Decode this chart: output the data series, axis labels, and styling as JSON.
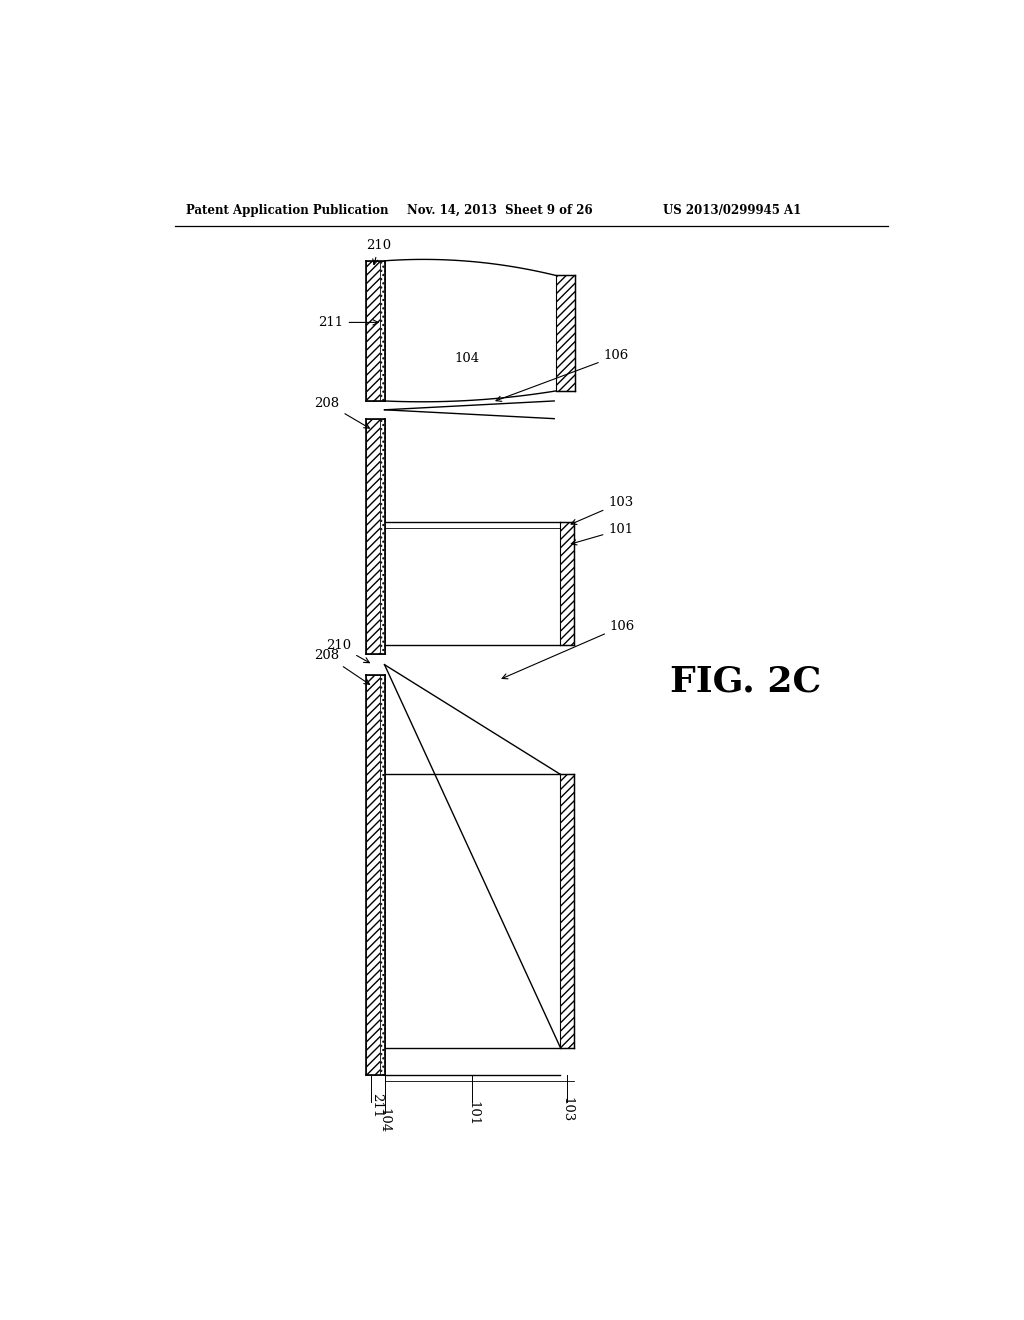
{
  "header_left": "Patent Application Publication",
  "header_mid": "Nov. 14, 2013  Sheet 9 of 26",
  "header_right": "US 2013/0299945 A1",
  "fig_label": "FIG. 2C",
  "background": "#ffffff",
  "line_color": "#000000",
  "wall_hatch": "////",
  "wall_dot": "...."
}
